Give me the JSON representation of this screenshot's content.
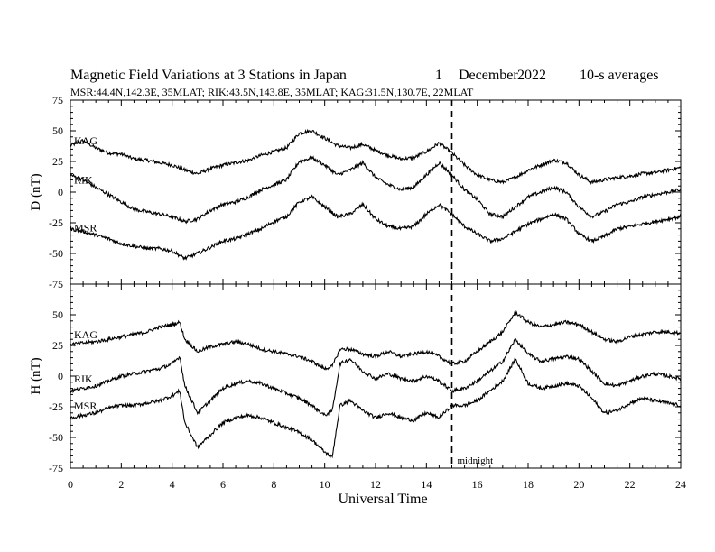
{
  "chart_data": {
    "type": "line",
    "title": "Magnetic Field Variations at 3 Stations in Japan",
    "date_day": "1",
    "date_month": "December",
    "date_year": "2022",
    "averaging": "10-s averages",
    "subtitle": "MSR:44.4N,142.3E, 35MLAT;  RIK:43.5N,143.8E, 35MLAT;  KAG:31.5N,130.7E, 22MLAT",
    "xlabel": "Universal Time",
    "xlim": [
      0,
      24
    ],
    "xticks": [
      "0",
      "2",
      "4",
      "6",
      "8",
      "10",
      "12",
      "14",
      "16",
      "18",
      "20",
      "22",
      "24"
    ],
    "midnight_ut": 15,
    "midnight_label": "midnight",
    "panels": [
      {
        "ylabel": "D (nT)",
        "ylim": [
          -75,
          75
        ],
        "yticks": [
          "75",
          "50",
          "25",
          "0",
          "-25",
          "-50",
          "-75"
        ],
        "series": [
          {
            "name": "KAG",
            "x": [
              0,
              0.5,
              1,
              1.5,
              2,
              2.5,
              3,
              3.5,
              4,
              4.5,
              5,
              5.5,
              6,
              6.5,
              7,
              7.5,
              8,
              8.5,
              9,
              9.5,
              10,
              10.5,
              11,
              11.5,
              12,
              12.5,
              13,
              13.5,
              14,
              14.5,
              15,
              15.5,
              16,
              16.5,
              17,
              17.5,
              18,
              18.5,
              19,
              19.5,
              20,
              20.5,
              21,
              21.5,
              22,
              22.5,
              23,
              23.5,
              24
            ],
            "y": [
              38,
              42,
              36,
              32,
              31,
              27,
              26,
              24,
              22,
              18,
              15,
              19,
              22,
              24,
              26,
              30,
              33,
              36,
              48,
              50,
              44,
              38,
              36,
              39,
              34,
              30,
              27,
              28,
              33,
              40,
              32,
              22,
              14,
              10,
              8,
              12,
              18,
              22,
              26,
              24,
              14,
              8,
              10,
              12,
              13,
              15,
              16,
              18,
              20
            ]
          },
          {
            "name": "RIK",
            "x": [
              0,
              0.5,
              1,
              1.5,
              2,
              2.5,
              3,
              3.5,
              4,
              4.5,
              5,
              5.5,
              6,
              6.5,
              7,
              7.5,
              8,
              8.5,
              9,
              9.5,
              10,
              10.5,
              11,
              11.5,
              12,
              12.5,
              13,
              13.5,
              14,
              14.5,
              15,
              15.5,
              16,
              16.5,
              17,
              17.5,
              18,
              18.5,
              19,
              19.5,
              20,
              20.5,
              21,
              21.5,
              22,
              22.5,
              23,
              23.5,
              24
            ],
            "y": [
              14,
              10,
              4,
              -2,
              -8,
              -14,
              -16,
              -18,
              -20,
              -24,
              -22,
              -15,
              -10,
              -8,
              -4,
              2,
              6,
              10,
              25,
              28,
              22,
              14,
              18,
              24,
              12,
              6,
              2,
              4,
              14,
              24,
              14,
              2,
              -6,
              -18,
              -20,
              -12,
              -4,
              0,
              4,
              0,
              -12,
              -20,
              -16,
              -10,
              -8,
              -4,
              -2,
              0,
              2
            ]
          },
          {
            "name": "MSR",
            "x": [
              0,
              0.5,
              1,
              1.5,
              2,
              2.5,
              3,
              3.5,
              4,
              4.5,
              5,
              5.5,
              6,
              6.5,
              7,
              7.5,
              8,
              8.5,
              9,
              9.5,
              10,
              10.5,
              11,
              11.5,
              12,
              12.5,
              13,
              13.5,
              14,
              14.5,
              15,
              15.5,
              16,
              16.5,
              17,
              17.5,
              18,
              18.5,
              19,
              19.5,
              20,
              20.5,
              21,
              21.5,
              22,
              22.5,
              23,
              23.5,
              24
            ],
            "y": [
              -30,
              -32,
              -35,
              -38,
              -42,
              -44,
              -46,
              -46,
              -48,
              -54,
              -50,
              -45,
              -40,
              -38,
              -34,
              -30,
              -24,
              -20,
              -8,
              -4,
              -12,
              -20,
              -18,
              -10,
              -22,
              -28,
              -30,
              -28,
              -18,
              -10,
              -18,
              -28,
              -34,
              -40,
              -38,
              -32,
              -26,
              -22,
              -18,
              -22,
              -34,
              -40,
              -36,
              -30,
              -28,
              -26,
              -24,
              -22,
              -20
            ]
          }
        ]
      },
      {
        "ylabel": "H (nT)",
        "ylim": [
          -75,
          75
        ],
        "yticks": [
          "75",
          "50",
          "25",
          "0",
          "-25",
          "-50",
          "-75"
        ],
        "series": [
          {
            "name": "KAG",
            "x": [
              0,
              0.5,
              1,
              1.5,
              2,
              2.5,
              3,
              3.5,
              4,
              4.3,
              4.5,
              5,
              5.5,
              6,
              6.5,
              7,
              7.5,
              8,
              8.5,
              9,
              9.5,
              10,
              10.3,
              10.6,
              11,
              11.5,
              12,
              12.5,
              13,
              13.5,
              14,
              14.5,
              15,
              15.5,
              16,
              16.5,
              17,
              17.5,
              18,
              18.5,
              19,
              19.5,
              20,
              20.5,
              21,
              21.5,
              22,
              22.5,
              23,
              23.5,
              24
            ],
            "y": [
              26,
              27,
              28,
              30,
              32,
              34,
              36,
              40,
              42,
              44,
              30,
              20,
              24,
              26,
              28,
              26,
              22,
              20,
              18,
              16,
              12,
              6,
              8,
              22,
              22,
              18,
              16,
              20,
              16,
              18,
              20,
              16,
              10,
              12,
              20,
              28,
              36,
              52,
              44,
              40,
              42,
              44,
              42,
              36,
              30,
              28,
              32,
              34,
              36,
              36,
              35
            ]
          },
          {
            "name": "RIK",
            "x": [
              0,
              0.5,
              1,
              1.5,
              2,
              2.5,
              3,
              3.5,
              4,
              4.3,
              4.5,
              5,
              5.5,
              6,
              6.5,
              7,
              7.5,
              8,
              8.5,
              9,
              9.5,
              10,
              10.3,
              10.6,
              11,
              11.5,
              12,
              12.5,
              13,
              13.5,
              14,
              14.5,
              15,
              15.5,
              16,
              16.5,
              17,
              17.5,
              18,
              18.5,
              19,
              19.5,
              20,
              20.5,
              21,
              21.5,
              22,
              22.5,
              23,
              23.5,
              24
            ],
            "y": [
              -12,
              -10,
              -8,
              -4,
              0,
              2,
              4,
              6,
              10,
              16,
              -8,
              -30,
              -20,
              -10,
              -6,
              -4,
              -6,
              -10,
              -14,
              -18,
              -24,
              -32,
              -28,
              10,
              14,
              4,
              -2,
              2,
              -2,
              -4,
              0,
              -4,
              -12,
              -10,
              -4,
              4,
              12,
              30,
              18,
              12,
              14,
              16,
              14,
              4,
              -6,
              -8,
              -4,
              0,
              2,
              0,
              -2
            ]
          },
          {
            "name": "MSR",
            "x": [
              0,
              0.5,
              1,
              1.5,
              2,
              2.5,
              3,
              3.5,
              4,
              4.3,
              4.5,
              5,
              5.5,
              6,
              6.5,
              7,
              7.5,
              8,
              8.5,
              9,
              9.5,
              10,
              10.3,
              10.6,
              11,
              11.5,
              12,
              12.5,
              13,
              13.5,
              14,
              14.5,
              15,
              15.5,
              16,
              16.5,
              17,
              17.5,
              18,
              18.5,
              19,
              19.5,
              20,
              20.5,
              21,
              21.5,
              22,
              22.5,
              23,
              23.5,
              24
            ],
            "y": [
              -34,
              -32,
              -30,
              -26,
              -24,
              -24,
              -22,
              -20,
              -16,
              -12,
              -38,
              -58,
              -48,
              -38,
              -34,
              -32,
              -34,
              -38,
              -42,
              -46,
              -52,
              -62,
              -66,
              -24,
              -20,
              -28,
              -34,
              -30,
              -34,
              -36,
              -30,
              -34,
              -24,
              -24,
              -20,
              -12,
              -4,
              14,
              -6,
              -10,
              -8,
              -6,
              -8,
              -18,
              -30,
              -28,
              -22,
              -18,
              -20,
              -22,
              -24
            ]
          }
        ]
      }
    ]
  }
}
